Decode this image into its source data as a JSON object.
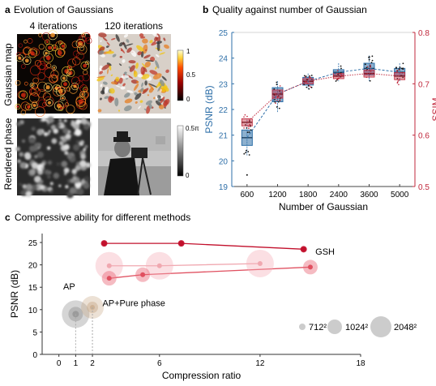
{
  "panels": {
    "a": {
      "letter": "a",
      "title": "Evolution of Gaussians"
    },
    "b": {
      "letter": "b",
      "title": "Quality against number of Gaussian"
    },
    "c": {
      "letter": "c",
      "title": "Compressive ability for different methods"
    }
  },
  "panel_a": {
    "col_labels": [
      "4 iterations",
      "120 iterations"
    ],
    "row_labels": [
      "Gaussian map",
      "Rendered phase"
    ],
    "colorbar_top": {
      "max": "1",
      "mid": "0.5",
      "min": "0"
    },
    "colorbar_bottom": {
      "max": "0.5π",
      "min": "0"
    }
  },
  "chart_data": [
    {
      "type": "box",
      "title": "Quality against number of Gaussian",
      "xlabel": "Number of Gaussian",
      "ylabel": "PSNR (dB)",
      "y2label": "SSIM",
      "categories": [
        "600",
        "1200",
        "1800",
        "2400",
        "3600",
        "5000"
      ],
      "ylim": [
        19,
        25
      ],
      "y2lim": [
        0.5,
        0.8
      ],
      "yticks": [
        "19",
        "20",
        "21",
        "22",
        "23",
        "24",
        "25"
      ],
      "y2ticks": [
        "0.5",
        "0.6",
        "0.7",
        "0.8"
      ],
      "colors": {
        "psnr": "#2e6fa8",
        "ssim": "#c0283c"
      },
      "series": [
        {
          "name": "PSNR (dB)",
          "medians": [
            20.9,
            22.6,
            23.1,
            23.45,
            23.6,
            23.45
          ],
          "q1": [
            20.6,
            22.3,
            22.95,
            23.3,
            23.35,
            23.3
          ],
          "q3": [
            21.2,
            22.85,
            23.25,
            23.55,
            23.8,
            23.6
          ],
          "min": [
            20.2,
            21.9,
            22.8,
            23.1,
            23.1,
            23.1
          ],
          "max": [
            21.6,
            23.1,
            23.4,
            23.8,
            24.1,
            23.8
          ]
        },
        {
          "name": "SSIM",
          "medians": [
            0.625,
            0.68,
            0.705,
            0.715,
            0.72,
            0.715
          ],
          "q1": [
            0.618,
            0.672,
            0.7,
            0.71,
            0.713,
            0.708
          ],
          "q3": [
            0.632,
            0.688,
            0.71,
            0.72,
            0.727,
            0.722
          ]
        }
      ]
    },
    {
      "type": "scatter",
      "title": "Compressive ability for different methods",
      "xlabel": "Compression ratio",
      "ylabel": "PSNR (dB)",
      "xlim": [
        -1,
        18
      ],
      "ylim": [
        0,
        27
      ],
      "xticks": [
        "0",
        "1",
        "2",
        "6",
        "12",
        "18"
      ],
      "yticks": [
        "0",
        "5",
        "10",
        "15",
        "20",
        "25"
      ],
      "series": [
        {
          "name": "GSH",
          "points": [
            {
              "x": 2.7,
              "y": 24.8,
              "size": "712²"
            },
            {
              "x": 7.3,
              "y": 24.8,
              "size": "712²"
            },
            {
              "x": 14.6,
              "y": 23.5,
              "size": "712²"
            },
            {
              "x": 3.0,
              "y": 17.0,
              "size": "1024²"
            },
            {
              "x": 5.0,
              "y": 17.8,
              "size": "1024²"
            },
            {
              "x": 15.0,
              "y": 19.5,
              "size": "1024²"
            },
            {
              "x": 3.0,
              "y": 19.8,
              "size": "2048²"
            },
            {
              "x": 6.0,
              "y": 19.8,
              "size": "2048²"
            },
            {
              "x": 12.0,
              "y": 20.3,
              "size": "2048²"
            }
          ]
        },
        {
          "name": "AP",
          "points": [
            {
              "x": 1,
              "y": 9.0
            }
          ]
        },
        {
          "name": "AP+Pure phase",
          "points": [
            {
              "x": 2,
              "y": 10.5
            }
          ]
        }
      ],
      "legend": {
        "sizes": [
          "712²",
          "1024²",
          "2048²"
        ]
      }
    }
  ]
}
